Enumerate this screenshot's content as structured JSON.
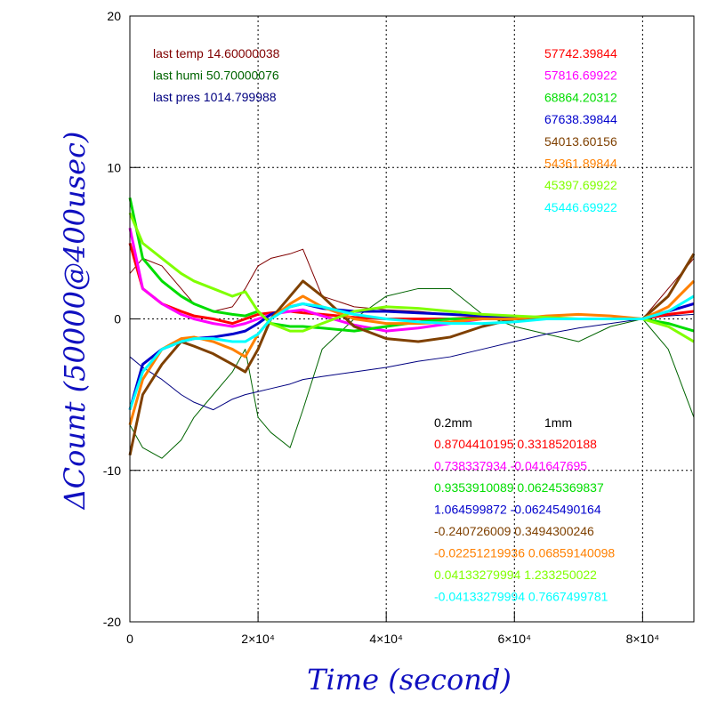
{
  "chart_data": {
    "type": "line",
    "xlabel": "Time (second)",
    "ylabel": "ΔCount (50000@400usec)",
    "xlim": [
      0,
      88000
    ],
    "ylim": [
      -20,
      20
    ],
    "xticks": [
      0,
      {
        "value": 20000,
        "label": "2×10⁴"
      },
      {
        "value": 40000,
        "label": "4×10⁴"
      },
      {
        "value": 60000,
        "label": "6×10⁴"
      },
      {
        "value": 80000,
        "label": "8×10⁴"
      }
    ],
    "yticks": [
      -20,
      -10,
      0,
      10,
      20
    ],
    "grid": true,
    "x": [
      0,
      2000,
      5000,
      8000,
      10000,
      13000,
      16000,
      18000,
      20000,
      22000,
      25000,
      27000,
      30000,
      35000,
      40000,
      45000,
      50000,
      55000,
      60000,
      65000,
      70000,
      75000,
      80000,
      84000,
      88000
    ],
    "series": [
      {
        "color": "#800000",
        "width": 1,
        "values": [
          3,
          4,
          3.5,
          2,
          1,
          0.5,
          0.8,
          2,
          3.5,
          4,
          4.3,
          4.6,
          1.5,
          0.8,
          0.6,
          0.5,
          0.3,
          0.2,
          0,
          0,
          0,
          0,
          0,
          2,
          4
        ]
      },
      {
        "color": "#006400",
        "width": 1,
        "values": [
          -7,
          -8.5,
          -9.2,
          -8,
          -6.5,
          -5,
          -3.5,
          -2,
          -6.5,
          -7.5,
          -8.5,
          -6,
          -2,
          0,
          1.5,
          2,
          2,
          0.3,
          -0.5,
          -1,
          -1.5,
          -0.5,
          0,
          -2,
          -6.5
        ]
      },
      {
        "color": "#000080",
        "width": 1,
        "values": [
          -2.5,
          -3.2,
          -4,
          -5,
          -5.5,
          -6,
          -5.3,
          -5,
          -4.8,
          -4.6,
          -4.3,
          -4,
          -3.8,
          -3.5,
          -3.2,
          -2.8,
          -2.5,
          -2,
          -1.5,
          -1,
          -0.6,
          -0.3,
          0,
          0.2,
          0.3
        ]
      },
      {
        "color": "#ff0000",
        "width": 3,
        "values": [
          5,
          2,
          1,
          0.5,
          0.2,
          0,
          -0.3,
          0,
          0.3,
          0.4,
          0.5,
          0.4,
          0.3,
          0.1,
          0,
          0,
          0,
          0.1,
          0,
          0,
          0,
          0,
          0,
          0.3,
          0.5
        ]
      },
      {
        "color": "#ff00ff",
        "width": 3,
        "values": [
          6,
          2,
          1,
          0.3,
          0,
          -0.3,
          -0.5,
          -0.3,
          0,
          0.3,
          0.5,
          0.6,
          0.2,
          -0.4,
          -0.8,
          -0.6,
          -0.3,
          0,
          0,
          0,
          0,
          0,
          0,
          0.5,
          1
        ]
      },
      {
        "color": "#00dd00",
        "width": 3,
        "values": [
          8,
          4,
          2.5,
          1.5,
          1,
          0.5,
          0.3,
          0.2,
          0.5,
          -0.3,
          -0.5,
          -0.5,
          -0.6,
          -0.8,
          -0.5,
          -0.2,
          0,
          0,
          0,
          0,
          0,
          0,
          0,
          -0.3,
          -0.8
        ]
      },
      {
        "color": "#0000cc",
        "width": 3,
        "values": [
          -6,
          -3,
          -2,
          -1.5,
          -1.3,
          -1.2,
          -1,
          -0.8,
          -0.3,
          0.3,
          0.8,
          1,
          0.7,
          0.5,
          0.5,
          0.4,
          0.3,
          0.2,
          0.1,
          0,
          0,
          0,
          0,
          0.5,
          1
        ]
      },
      {
        "color": "#7f4000",
        "width": 3,
        "values": [
          -9,
          -5,
          -3,
          -1.5,
          -1.8,
          -2.3,
          -3,
          -3.5,
          -2,
          0,
          1.5,
          2.5,
          1.5,
          -0.5,
          -1.3,
          -1.5,
          -1.2,
          -0.5,
          0,
          0,
          0,
          0,
          0,
          1.5,
          4.3
        ]
      },
      {
        "color": "#ff8000",
        "width": 3,
        "values": [
          -7,
          -4,
          -2,
          -1.3,
          -1.2,
          -1.5,
          -2,
          -2.5,
          -1,
          0,
          1,
          1.5,
          0.8,
          0,
          -0.3,
          -0.3,
          -0.2,
          0,
          0,
          0.2,
          0.3,
          0.2,
          0,
          0.8,
          2.5
        ]
      },
      {
        "color": "#80ff00",
        "width": 3,
        "values": [
          7,
          5,
          4,
          3,
          2.5,
          2,
          1.5,
          1.8,
          0.5,
          -0.3,
          -0.8,
          -0.8,
          -0.3,
          0.5,
          0.8,
          0.7,
          0.5,
          0.3,
          0.2,
          0.1,
          0,
          0,
          0,
          -0.5,
          -1.5
        ]
      },
      {
        "color": "#00ffff",
        "width": 3,
        "values": [
          -6,
          -3.5,
          -2,
          -1.5,
          -1.3,
          -1.3,
          -1.5,
          -1.5,
          -1,
          0,
          0.8,
          1,
          0.8,
          0.3,
          0,
          -0.2,
          -0.3,
          -0.3,
          -0.2,
          0,
          0,
          0,
          0,
          0.5,
          1.5
        ]
      }
    ],
    "env_labels": [
      {
        "text": "last temp 14.60000038",
        "color": "#800000"
      },
      {
        "text": "last humi 50.70000076",
        "color": "#006400"
      },
      {
        "text": "last pres 1014.799988",
        "color": "#000080"
      }
    ],
    "counts": [
      {
        "text": "57742.39844",
        "color": "#ff0000"
      },
      {
        "text": "57816.69922",
        "color": "#ff00ff"
      },
      {
        "text": "68864.20312",
        "color": "#00dd00"
      },
      {
        "text": "67638.39844",
        "color": "#0000cc"
      },
      {
        "text": "54013.60156",
        "color": "#7f4000"
      },
      {
        "text": "54361.89844",
        "color": "#ff8000"
      },
      {
        "text": "45397.69922",
        "color": "#80ff00"
      },
      {
        "text": "45446.69922",
        "color": "#00ffff"
      }
    ],
    "table_header": [
      "0.2mm",
      "1mm"
    ],
    "table_rows": [
      {
        "text": "0.8704410195 0.3318520188",
        "color": "#ff0000"
      },
      {
        "text": "0.738337934 -0.041647695",
        "color": "#ff00ff"
      },
      {
        "text": "0.9353910089 0.06245369837",
        "color": "#00dd00"
      },
      {
        "text": "1.064599872 -0.06245490164",
        "color": "#0000cc"
      },
      {
        "text": "-0.240726009 0.3494300246",
        "color": "#7f4000"
      },
      {
        "text": "-0.02251219936 0.06859140098",
        "color": "#ff8000"
      },
      {
        "text": "0.04133279994 1.233250022",
        "color": "#80ff00"
      },
      {
        "text": "-0.04133279994 0.7667499781",
        "color": "#00ffff"
      }
    ]
  }
}
